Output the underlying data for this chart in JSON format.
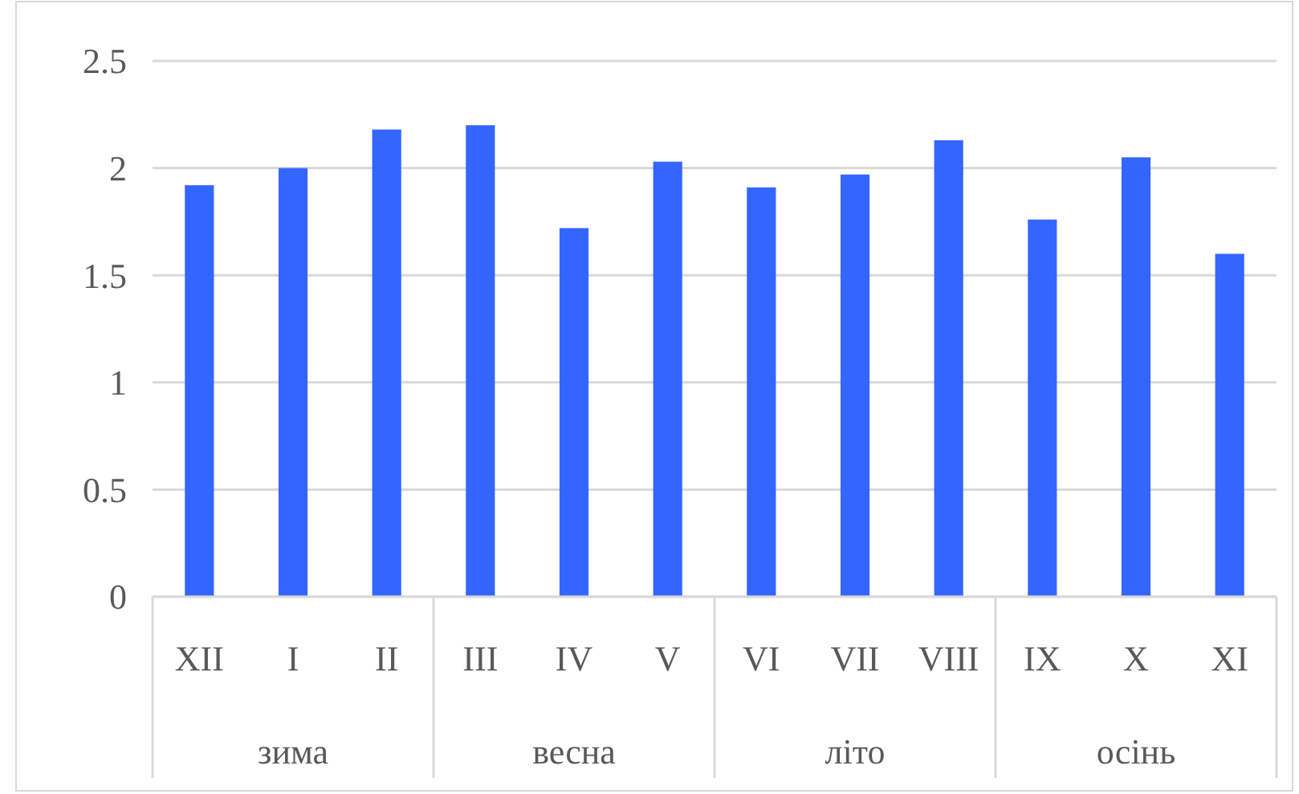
{
  "chart_data": {
    "type": "bar",
    "categories": [
      "XII",
      "I",
      "II",
      "III",
      "IV",
      "V",
      "VI",
      "VII",
      "VIII",
      "IX",
      "X",
      "XI"
    ],
    "values": [
      1.92,
      2.0,
      2.18,
      2.2,
      1.72,
      2.03,
      1.91,
      1.97,
      2.13,
      1.76,
      2.05,
      1.6
    ],
    "color": "#3366ff",
    "ylim": [
      0,
      2.5
    ],
    "yticks": [
      0,
      0.5,
      1,
      1.5,
      2,
      2.5
    ],
    "grid": "y",
    "annotations": [
      "зима",
      "весна",
      "літо",
      "осінь"
    ]
  }
}
